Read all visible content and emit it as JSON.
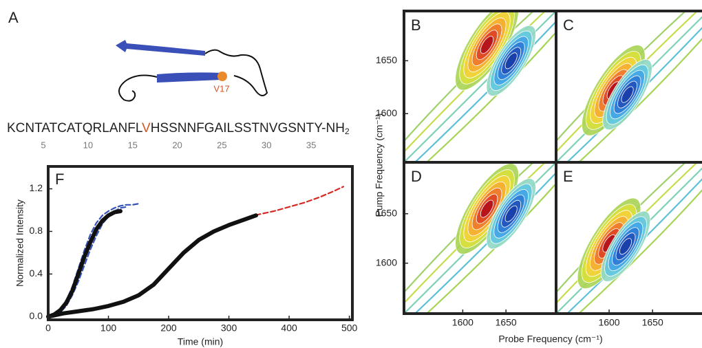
{
  "panel_a": {
    "label": "A",
    "residue_label": "V17",
    "sequence": {
      "before": "KCNTATCATQRLANFL",
      "mutant": "V",
      "after": "HSSNNFGAILSSTNVGSNTY-NH",
      "subscript": "2"
    },
    "positions": [
      5,
      10,
      15,
      20,
      25,
      30,
      35
    ]
  },
  "contour_axes": {
    "xlabel": "Probe Frequency (cm⁻¹)",
    "ylabel": "Pump Frequency (cm⁻¹)"
  },
  "chart_data": [
    {
      "type": "line",
      "title": "F",
      "xlabel": "Time (min)",
      "ylabel": "Normalized Intensity",
      "xlim": [
        0,
        505
      ],
      "ylim": [
        -0.03,
        1.41
      ],
      "xticks": [
        0,
        100,
        200,
        300,
        400,
        500
      ],
      "yticks": [
        {
          "value": 0,
          "label": "0.0"
        },
        0.4,
        0.8,
        1.2
      ],
      "series": [
        {
          "color": "#3553b8",
          "dash": true,
          "x": [
            0,
            10,
            20,
            30,
            40,
            50,
            60,
            70,
            80,
            90,
            100,
            110,
            120,
            130,
            140,
            150
          ],
          "values": [
            0,
            0.02,
            0.07,
            0.15,
            0.28,
            0.45,
            0.62,
            0.77,
            0.88,
            0.95,
            0.99,
            1.02,
            1.04,
            1.05,
            1.05,
            1.06
          ]
        },
        {
          "color": "#3553b8",
          "dash": true,
          "x": [
            0,
            10,
            20,
            30,
            40,
            50,
            60,
            70,
            80,
            90,
            100,
            110,
            120,
            130
          ],
          "values": [
            0,
            0.01,
            0.04,
            0.1,
            0.2,
            0.33,
            0.48,
            0.63,
            0.76,
            0.87,
            0.94,
            0.99,
            1.02,
            1.03
          ]
        },
        {
          "color": "#d42a22",
          "dash": true,
          "x": [
            80,
            100,
            125,
            150,
            175,
            200,
            225,
            250,
            275,
            300,
            325,
            350,
            375,
            400,
            425,
            450,
            475,
            490
          ],
          "values": [
            0.07,
            0.1,
            0.14,
            0.2,
            0.31,
            0.46,
            0.61,
            0.73,
            0.81,
            0.87,
            0.92,
            0.96,
            0.99,
            1.03,
            1.07,
            1.12,
            1.18,
            1.22
          ]
        },
        {
          "color": "#111111",
          "dash": false,
          "x": [
            0,
            10,
            20,
            30,
            40,
            50,
            60,
            70,
            80,
            90,
            100,
            110,
            120
          ],
          "values": [
            0,
            0.02,
            0.06,
            0.13,
            0.24,
            0.4,
            0.56,
            0.7,
            0.82,
            0.9,
            0.95,
            0.98,
            0.99
          ]
        },
        {
          "color": "#111111",
          "dash": false,
          "x": [
            0,
            25,
            50,
            75,
            100,
            125,
            150,
            175,
            200,
            225,
            250,
            275,
            300,
            325,
            345
          ],
          "values": [
            0,
            0.03,
            0.05,
            0.07,
            0.1,
            0.14,
            0.2,
            0.3,
            0.45,
            0.6,
            0.72,
            0.8,
            0.86,
            0.91,
            0.95
          ]
        }
      ]
    },
    {
      "type": "contour",
      "title": "B",
      "xlim": [
        1532,
        1708
      ],
      "ylim": [
        1554,
        1697
      ],
      "yticks": [
        1600,
        1650
      ],
      "peaks": [
        {
          "x": 1628,
          "y": 1665,
          "color": "#b3101c"
        },
        {
          "x": 1656,
          "y": 1650,
          "color": "#1a3fa8"
        }
      ]
    },
    {
      "type": "contour",
      "title": "C",
      "xlim": [
        1539,
        1714
      ],
      "ylim": [
        1554,
        1697
      ],
      "peaks": [
        {
          "x": 1605,
          "y": 1622,
          "color": "#b3101c"
        },
        {
          "x": 1621,
          "y": 1618,
          "color": "#1a3fa8"
        }
      ]
    },
    {
      "type": "contour",
      "title": "D",
      "xlim": [
        1532,
        1708
      ],
      "ylim": [
        1549,
        1702
      ],
      "xticks": [
        1600,
        1650
      ],
      "yticks": [
        1600,
        1650
      ],
      "peaks": [
        {
          "x": 1628,
          "y": 1655,
          "color": "#b3101c"
        },
        {
          "x": 1656,
          "y": 1650,
          "color": "#1a3fa8"
        }
      ]
    },
    {
      "type": "contour",
      "title": "E",
      "xlim": [
        1539,
        1714
      ],
      "ylim": [
        1549,
        1702
      ],
      "xticks": [
        1600,
        1650
      ],
      "peaks": [
        {
          "x": 1600,
          "y": 1620,
          "color": "#b3101c"
        },
        {
          "x": 1619,
          "y": 1617,
          "color": "#1a3fa8"
        }
      ]
    }
  ]
}
